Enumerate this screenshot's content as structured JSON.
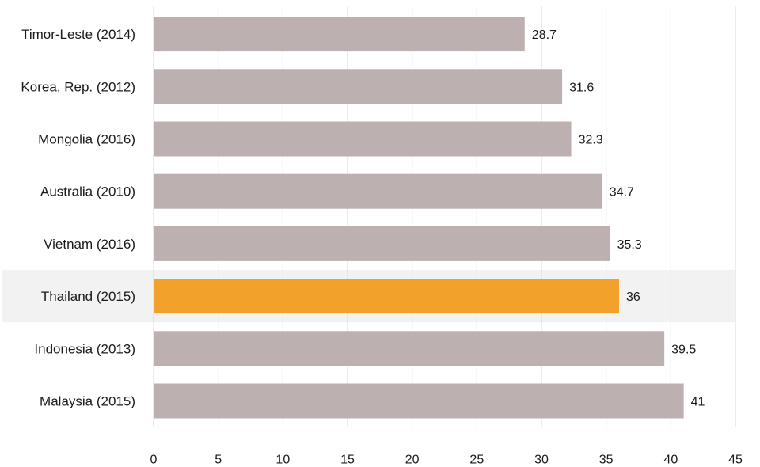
{
  "chart_data": {
    "type": "bar",
    "orientation": "horizontal",
    "categories": [
      "Timor-Leste (2014)",
      "Korea, Rep. (2012)",
      "Mongolia (2016)",
      "Australia (2010)",
      "Vietnam (2016)",
      "Thailand (2015)",
      "Indonesia (2013)",
      "Malaysia (2015)"
    ],
    "values": [
      28.7,
      31.6,
      32.3,
      34.7,
      35.3,
      36,
      39.5,
      41
    ],
    "value_labels": [
      "28.7",
      "31.6",
      "32.3",
      "34.7",
      "35.3",
      "36",
      "39.5",
      "41"
    ],
    "highlight": "Thailand (2015)",
    "xlim": [
      0,
      45
    ],
    "xticks": [
      0,
      5,
      10,
      15,
      20,
      25,
      30,
      35,
      40,
      45
    ],
    "grid": true,
    "colors": {
      "bar": "#bcb1b0",
      "highlight_bar": "#f2a12a",
      "highlight_band": "#f2f2f2",
      "grid": "#d9d9d9"
    }
  }
}
